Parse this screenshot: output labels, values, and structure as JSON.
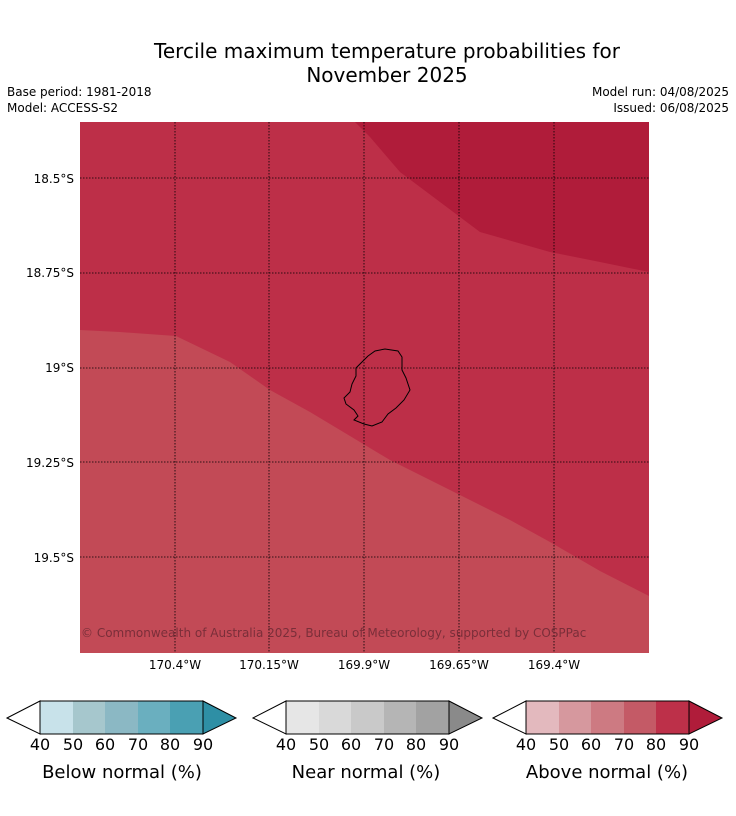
{
  "header": {
    "title_line1": "Tercile maximum temperature probabilities for",
    "title_line2": "November 2025",
    "base_period": "Base period: 1981-2018",
    "model": "Model: ACCESS-S2",
    "model_run": "Model run: 04/08/2025",
    "issued": "Issued: 06/08/2025"
  },
  "map": {
    "lat_ticks": [
      "18.5°S",
      "18.75°S",
      "19°S",
      "19.25°S",
      "19.5°S"
    ],
    "lon_ticks": [
      "170.4°W",
      "170.15°W",
      "169.9°W",
      "169.65°W",
      "169.4°W"
    ],
    "copyright": "© Commonwealth of Australia 2025, Bureau of Meteorology, supported by COSPPac",
    "colors": {
      "dark": "#b01c3a",
      "mid": "#bd2f48",
      "light": "#c24a56"
    }
  },
  "colorbars": [
    {
      "label": "Below normal (%)",
      "ticks": [
        "40",
        "50",
        "60",
        "70",
        "80",
        "90"
      ],
      "colors": [
        "#c8e2ea",
        "#a6c7cd",
        "#8bb8c4",
        "#6aafbf",
        "#4aa0b3",
        "#2e8fa5"
      ]
    },
    {
      "label": "Near normal (%)",
      "ticks": [
        "40",
        "50",
        "60",
        "70",
        "80",
        "90"
      ],
      "colors": [
        "#e6e6e6",
        "#d9d9d9",
        "#c9c9c9",
        "#b5b5b5",
        "#a2a2a2",
        "#8a8a8a"
      ]
    },
    {
      "label": "Above normal (%)",
      "ticks": [
        "40",
        "50",
        "60",
        "70",
        "80",
        "90"
      ],
      "colors": [
        "#e3b9be",
        "#d6989e",
        "#cd7a82",
        "#c45a66",
        "#bd3049",
        "#b01c3a"
      ]
    }
  ]
}
